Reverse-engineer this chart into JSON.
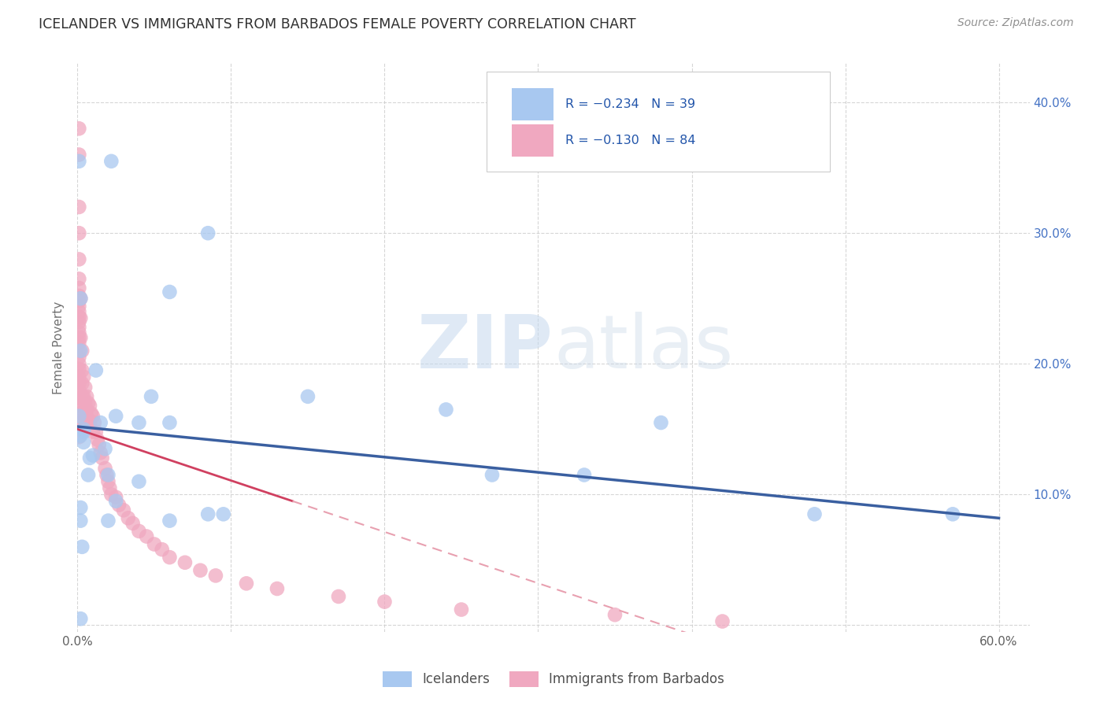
{
  "title": "ICELANDER VS IMMIGRANTS FROM BARBADOS FEMALE POVERTY CORRELATION CHART",
  "source": "Source: ZipAtlas.com",
  "ylabel": "Female Poverty",
  "xlim": [
    0.0,
    0.62
  ],
  "ylim": [
    -0.005,
    0.43
  ],
  "color_icelander": "#a8c8f0",
  "color_barbados": "#f0a8c0",
  "color_icelander_line": "#3a5fa0",
  "color_barbados_line_solid": "#d04060",
  "color_barbados_line_dashed": "#e8a0b0",
  "color_title": "#303030",
  "color_source": "#909090",
  "color_right_axis": "#4472c4",
  "color_axis_label": "#707070",
  "background_color": "#ffffff",
  "icel_x": [
    0.001,
    0.022,
    0.085,
    0.002,
    0.002,
    0.012,
    0.048,
    0.001,
    0.025,
    0.015,
    0.04,
    0.004,
    0.004,
    0.002,
    0.004,
    0.018,
    0.01,
    0.008,
    0.06,
    0.24,
    0.095,
    0.007,
    0.38,
    0.27,
    0.33,
    0.48,
    0.57,
    0.002,
    0.002,
    0.15,
    0.02,
    0.02,
    0.04,
    0.025,
    0.06,
    0.06,
    0.085,
    0.002,
    0.003
  ],
  "icel_y": [
    0.355,
    0.355,
    0.3,
    0.25,
    0.21,
    0.195,
    0.175,
    0.16,
    0.16,
    0.155,
    0.155,
    0.15,
    0.148,
    0.145,
    0.14,
    0.135,
    0.13,
    0.128,
    0.255,
    0.165,
    0.085,
    0.115,
    0.155,
    0.115,
    0.115,
    0.085,
    0.085,
    0.09,
    0.08,
    0.175,
    0.115,
    0.08,
    0.11,
    0.095,
    0.08,
    0.155,
    0.085,
    0.005,
    0.06
  ],
  "barb_x": [
    0.001,
    0.001,
    0.001,
    0.001,
    0.001,
    0.001,
    0.001,
    0.001,
    0.001,
    0.001,
    0.001,
    0.001,
    0.001,
    0.001,
    0.001,
    0.001,
    0.001,
    0.001,
    0.001,
    0.001,
    0.001,
    0.001,
    0.001,
    0.001,
    0.001,
    0.001,
    0.001,
    0.001,
    0.001,
    0.001,
    0.003,
    0.003,
    0.003,
    0.003,
    0.003,
    0.004,
    0.004,
    0.005,
    0.005,
    0.005,
    0.006,
    0.006,
    0.007,
    0.007,
    0.008,
    0.008,
    0.009,
    0.01,
    0.01,
    0.011,
    0.012,
    0.013,
    0.014,
    0.015,
    0.016,
    0.018,
    0.019,
    0.02,
    0.021,
    0.022,
    0.025,
    0.027,
    0.03,
    0.033,
    0.036,
    0.04,
    0.045,
    0.05,
    0.055,
    0.06,
    0.07,
    0.08,
    0.09,
    0.11,
    0.13,
    0.17,
    0.2,
    0.25,
    0.35,
    0.42,
    0.002,
    0.002,
    0.002,
    0.003
  ],
  "barb_y": [
    0.38,
    0.36,
    0.32,
    0.3,
    0.28,
    0.265,
    0.258,
    0.252,
    0.248,
    0.244,
    0.24,
    0.236,
    0.232,
    0.228,
    0.224,
    0.22,
    0.216,
    0.21,
    0.205,
    0.2,
    0.196,
    0.19,
    0.185,
    0.18,
    0.174,
    0.168,
    0.162,
    0.156,
    0.15,
    0.144,
    0.195,
    0.185,
    0.175,
    0.165,
    0.155,
    0.19,
    0.175,
    0.182,
    0.17,
    0.16,
    0.175,
    0.165,
    0.17,
    0.158,
    0.168,
    0.155,
    0.162,
    0.16,
    0.148,
    0.155,
    0.148,
    0.142,
    0.138,
    0.132,
    0.128,
    0.12,
    0.115,
    0.11,
    0.105,
    0.1,
    0.098,
    0.092,
    0.088,
    0.082,
    0.078,
    0.072,
    0.068,
    0.062,
    0.058,
    0.052,
    0.048,
    0.042,
    0.038,
    0.032,
    0.028,
    0.022,
    0.018,
    0.012,
    0.008,
    0.003,
    0.25,
    0.235,
    0.22,
    0.21
  ]
}
